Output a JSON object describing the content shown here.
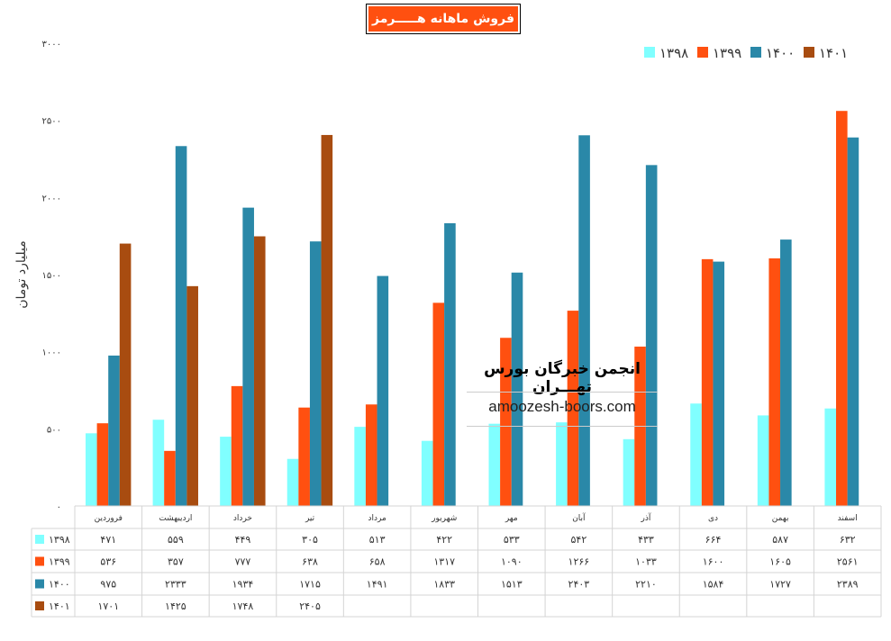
{
  "chart_data": {
    "type": "bar",
    "title": "فروش ماهانه هـــــرمز",
    "ylabel": "میلیارد تومان",
    "xlabel": "",
    "ylim": [
      0,
      3000
    ],
    "yticks": [
      0,
      500,
      1000,
      1500,
      2000,
      2500,
      3000
    ],
    "grid": false,
    "legend_position": "top-right",
    "categories": [
      "فروردین",
      "اردیبهشت",
      "خرداد",
      "تیر",
      "مرداد",
      "شهریور",
      "مهر",
      "آبان",
      "آذر",
      "دی",
      "بهمن",
      "اسفند"
    ],
    "series": [
      {
        "name": "۱۳۹۸",
        "color": "#80ffff",
        "values": [
          471,
          559,
          449,
          305,
          513,
          422,
          533,
          542,
          433,
          664,
          587,
          632
        ]
      },
      {
        "name": "۱۳۹۹",
        "color": "#ff5010",
        "values": [
          536,
          357,
          777,
          638,
          658,
          1317,
          1090,
          1266,
          1033,
          1600,
          1605,
          2561
        ]
      },
      {
        "name": "۱۴۰۰",
        "color": "#2a88a8",
        "values": [
          975,
          2333,
          1934,
          1715,
          1491,
          1833,
          1513,
          2403,
          2210,
          1584,
          1727,
          2389
        ]
      },
      {
        "name": "۱۴۰۱",
        "color": "#a84c10",
        "values": [
          1701,
          1425,
          1748,
          2405,
          null,
          null,
          null,
          null,
          null,
          null,
          null,
          null
        ]
      }
    ],
    "data_table": true
  },
  "watermark": {
    "line1": "انجمن خبرگان بورس تهـــران",
    "line2": "amoozesh-boors.com"
  }
}
